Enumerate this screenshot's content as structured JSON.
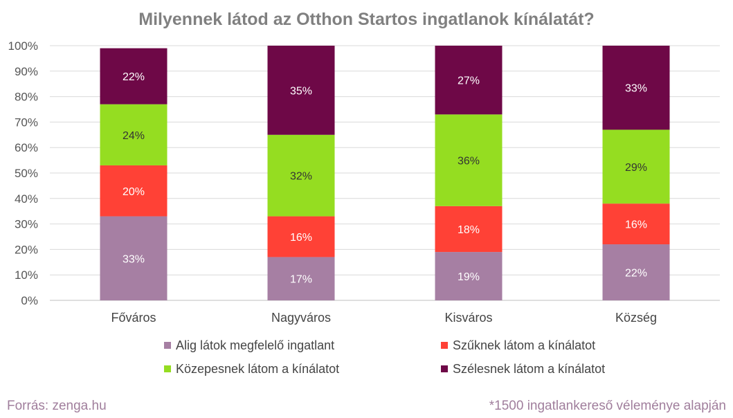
{
  "chart_data": {
    "type": "bar",
    "stacked": true,
    "title": "Milyennek látod az Otthon Startos ingatlanok kínálatát?",
    "categories": [
      "Főváros",
      "Nagyváros",
      "Kisváros",
      "Község"
    ],
    "ylim": [
      0,
      100
    ],
    "yticks": [
      "0%",
      "10%",
      "20%",
      "30%",
      "40%",
      "50%",
      "60%",
      "70%",
      "80%",
      "90%",
      "100%"
    ],
    "grid": true,
    "legend_position": "bottom",
    "series": [
      {
        "name": "Alig látok megfelelő ingatlant",
        "color": "#a67fa3",
        "values": [
          33,
          17,
          19,
          22
        ],
        "labels": [
          "33%",
          "17%",
          "19%",
          "22%"
        ]
      },
      {
        "name": "Szűknek látom a kínálatot",
        "color": "#ff4136",
        "values": [
          20,
          16,
          18,
          16
        ],
        "labels": [
          "20%",
          "16%",
          "18%",
          "16%"
        ]
      },
      {
        "name": "Közepesnek látom a kínálatot",
        "color": "#95dd21",
        "values": [
          24,
          32,
          36,
          29
        ],
        "labels": [
          "24%",
          "32%",
          "36%",
          "29%"
        ]
      },
      {
        "name": "Szélesnek látom a kínálatot",
        "color": "#6e0847",
        "values": [
          22,
          35,
          27,
          33
        ],
        "labels": [
          "22%",
          "35%",
          "27%",
          "33%"
        ]
      }
    ]
  },
  "footer": {
    "source": "Forrás: zenga.hu",
    "note": "*1500 ingatlankereső véleménye alapján"
  }
}
